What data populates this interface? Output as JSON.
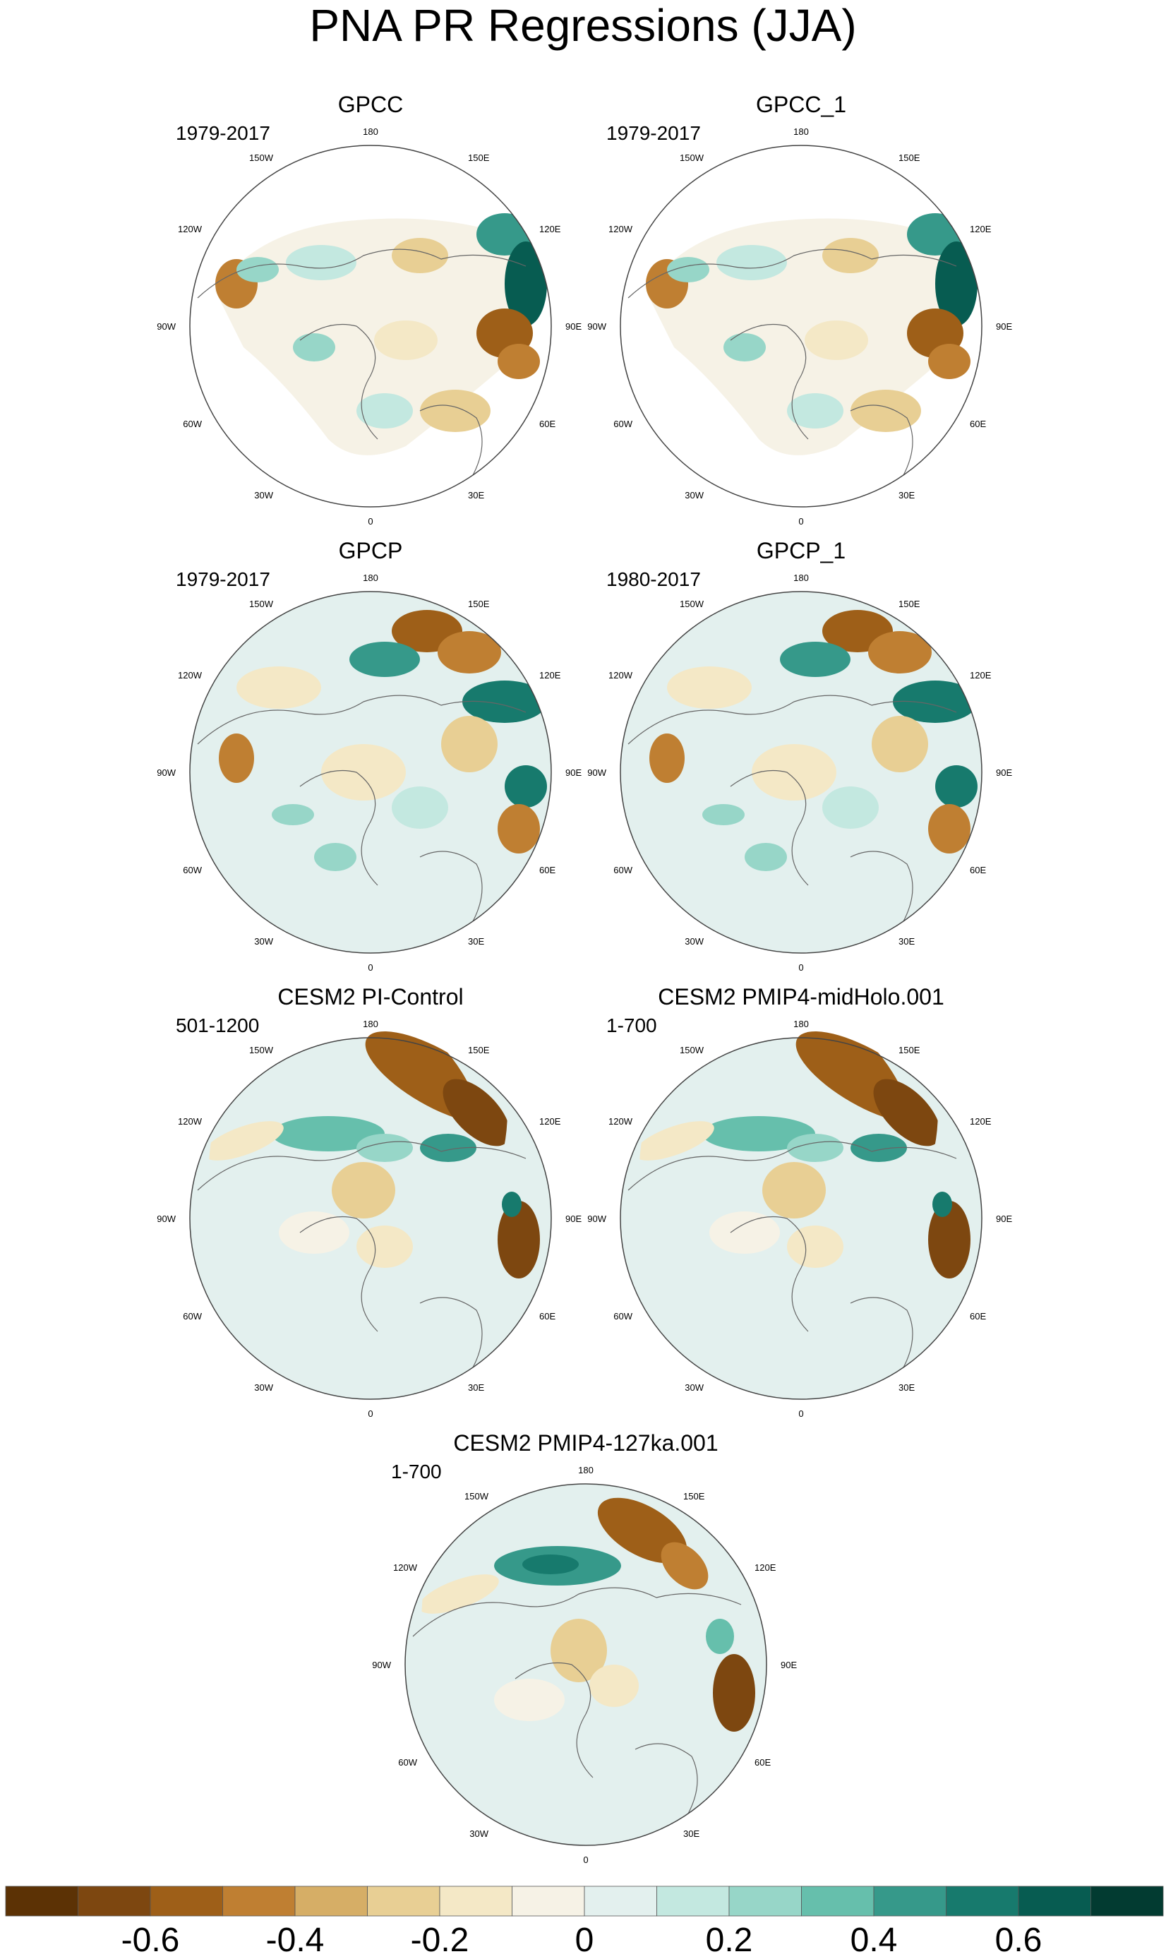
{
  "title": "PNA PR Regressions (JJA)",
  "chart_data": {
    "type": "heatmap",
    "projection": "north-polar-stereographic",
    "panels": [
      {
        "name": "GPCC",
        "period": "1979-2017"
      },
      {
        "name": "GPCC_1",
        "period": "1979-2017"
      },
      {
        "name": "GPCP",
        "period": "1979-2017"
      },
      {
        "name": "GPCP_1",
        "period": "1980-2017"
      },
      {
        "name": "CESM2 PI-Control",
        "period": "501-1200"
      },
      {
        "name": "CESM2 PMIP4-midHolo.001",
        "period": "1-700"
      },
      {
        "name": "CESM2 PMIP4-127ka.001",
        "period": "1-700"
      }
    ],
    "longitude_labels": [
      "180",
      "150E",
      "120E",
      "90E",
      "60E",
      "30E",
      "0",
      "30W",
      "60W",
      "90W",
      "120W",
      "150W"
    ],
    "colorbar": {
      "colors": [
        "#5c3205",
        "#7d4710",
        "#9e5f18",
        "#bf7f32",
        "#d6ae66",
        "#e8cf94",
        "#f4e8c6",
        "#f6f2e6",
        "#e3f0ee",
        "#c3e8e0",
        "#97d6c8",
        "#66bfac",
        "#36998a",
        "#177a6d",
        "#075c51",
        "#023b31"
      ],
      "tick_labels": [
        "-0.6",
        "-0.4",
        "-0.2",
        "0",
        "0.2",
        "0.4",
        "0.6"
      ]
    }
  }
}
